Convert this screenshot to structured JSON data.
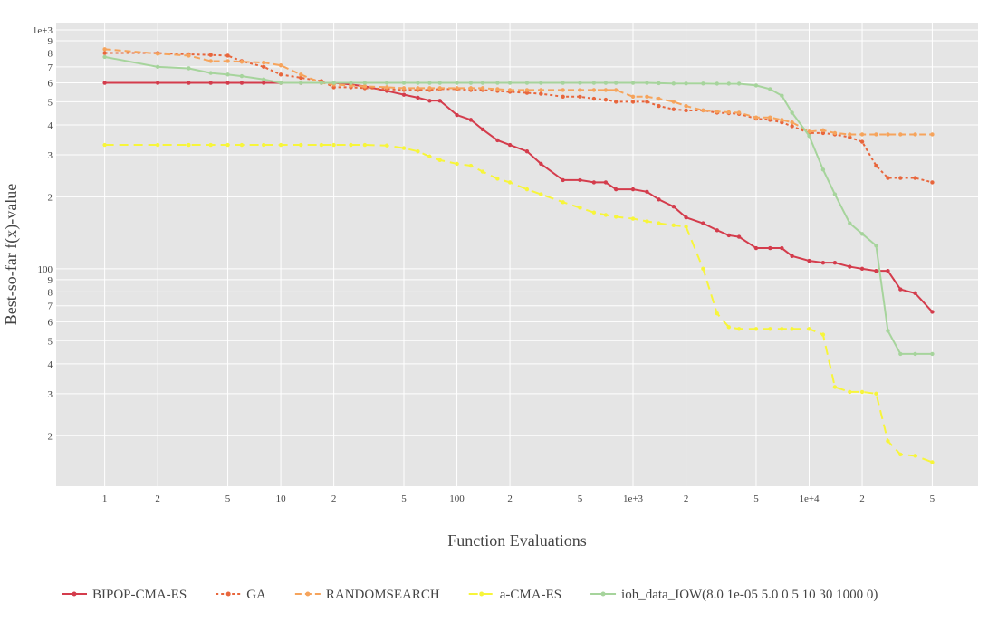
{
  "chart_data": {
    "type": "line",
    "xlabel": "Function Evaluations",
    "ylabel": "Best-so-far f(x)-value",
    "xscale": "log",
    "yscale": "log",
    "grid": true,
    "legend": "bottom",
    "xlim": [
      0.53,
      91000
    ],
    "ylim": [
      12.3,
      1072
    ],
    "xticks": [
      1,
      {
        "value": 2,
        "label": "2"
      },
      5,
      10,
      {
        "value": 20,
        "label": "2"
      },
      {
        "value": 50,
        "label": "5"
      },
      100,
      {
        "value": 200,
        "label": "2"
      },
      {
        "value": 500,
        "label": "5"
      },
      {
        "value": 1000,
        "label": "1e+3"
      },
      {
        "value": 2000,
        "label": "2"
      },
      {
        "value": 5000,
        "label": "5"
      },
      {
        "value": 10000,
        "label": "1e+4"
      },
      {
        "value": 20000,
        "label": "2"
      },
      {
        "value": 50000,
        "label": "5"
      }
    ],
    "yticks": [
      {
        "value": 20,
        "label": "2"
      },
      {
        "value": 30,
        "label": "3"
      },
      {
        "value": 40,
        "label": "4"
      },
      {
        "value": 50,
        "label": "5"
      },
      {
        "value": 60,
        "label": "6"
      },
      {
        "value": 70,
        "label": "7"
      },
      {
        "value": 80,
        "label": "8"
      },
      {
        "value": 90,
        "label": "9"
      },
      100,
      {
        "value": 200,
        "label": "2"
      },
      {
        "value": 300,
        "label": "3"
      },
      {
        "value": 400,
        "label": "4"
      },
      {
        "value": 500,
        "label": "5"
      },
      {
        "value": 600,
        "label": "6"
      },
      {
        "value": 700,
        "label": "7"
      },
      {
        "value": 800,
        "label": "8"
      },
      {
        "value": 900,
        "label": "9"
      },
      {
        "value": 1000,
        "label": "1e+3"
      }
    ],
    "x": [
      1,
      2,
      3,
      4,
      5,
      6,
      8,
      10,
      13,
      17,
      20,
      25,
      30,
      40,
      50,
      60,
      70,
      80,
      100,
      120,
      140,
      170,
      200,
      250,
      300,
      400,
      500,
      600,
      700,
      800,
      1000,
      1200,
      1400,
      1700,
      2000,
      2500,
      3000,
      3500,
      4000,
      5000,
      6000,
      7000,
      8000,
      10000,
      12000,
      14000,
      17000,
      20000,
      24000,
      28000,
      33000,
      40000,
      50000
    ],
    "series": [
      {
        "name": "BIPOP-CMA-ES",
        "color": "#d43c4c",
        "dash": "solid",
        "values": [
          600,
          600,
          600,
          600,
          600,
          600,
          600,
          600,
          600,
          600,
          600,
          590,
          580,
          555,
          535,
          520,
          505,
          505,
          440,
          420,
          383,
          345,
          330,
          310,
          275,
          235,
          235,
          230,
          230,
          215,
          215,
          210,
          195,
          182,
          164,
          155,
          145,
          138,
          136,
          122,
          122,
          122,
          113,
          108,
          106,
          106,
          102,
          100,
          98,
          98,
          82,
          79,
          66
        ]
      },
      {
        "name": "GA",
        "color": "#e8663c",
        "dash": "dot",
        "values": [
          800,
          800,
          790,
          785,
          780,
          740,
          700,
          650,
          630,
          610,
          575,
          575,
          570,
          565,
          560,
          560,
          560,
          565,
          565,
          560,
          560,
          555,
          550,
          545,
          540,
          525,
          525,
          515,
          510,
          500,
          500,
          500,
          480,
          465,
          460,
          460,
          450,
          448,
          445,
          425,
          420,
          410,
          395,
          370,
          370,
          365,
          355,
          340,
          270,
          240,
          240,
          240,
          230
        ]
      },
      {
        "name": "RANDOMSEARCH",
        "color": "#f6a45c",
        "dash": "dash",
        "values": [
          830,
          795,
          780,
          740,
          740,
          735,
          730,
          710,
          650,
          600,
          590,
          585,
          580,
          575,
          570,
          570,
          570,
          570,
          570,
          570,
          570,
          565,
          560,
          560,
          560,
          560,
          560,
          560,
          560,
          560,
          525,
          525,
          515,
          500,
          480,
          460,
          455,
          452,
          450,
          430,
          430,
          420,
          410,
          375,
          380,
          370,
          365,
          365,
          365,
          365,
          365,
          365,
          365
        ]
      },
      {
        "name": "a-CMA-ES",
        "color": "#f7f53a",
        "dash": "longdash",
        "values": [
          330,
          330,
          330,
          330,
          330,
          330,
          330,
          330,
          330,
          330,
          330,
          330,
          330,
          328,
          320,
          310,
          295,
          285,
          275,
          270,
          255,
          238,
          230,
          215,
          205,
          190,
          180,
          172,
          168,
          165,
          162,
          158,
          155,
          152,
          150,
          100,
          65,
          57,
          56,
          56,
          56,
          56,
          56,
          56,
          53,
          32,
          30.5,
          30.5,
          30,
          19,
          16.7,
          16.5,
          15.5
        ]
      },
      {
        "name": "ioh_data_IOW(8.0 1e-05 5.0 0 5 10 30 1000 0)",
        "color": "#a6d49c",
        "dash": "solid",
        "values": [
          770,
          700,
          690,
          660,
          650,
          640,
          620,
          600,
          600,
          600,
          600,
          600,
          600,
          600,
          600,
          600,
          600,
          600,
          600,
          600,
          600,
          600,
          600,
          600,
          600,
          600,
          600,
          600,
          600,
          600,
          600,
          600,
          598,
          596,
          596,
          596,
          595,
          595,
          595,
          585,
          565,
          530,
          450,
          360,
          260,
          205,
          155,
          140,
          125,
          55,
          44,
          44,
          44
        ]
      }
    ]
  }
}
